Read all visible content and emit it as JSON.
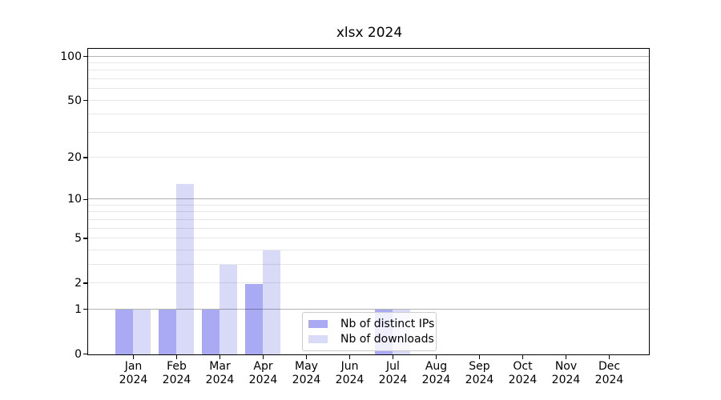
{
  "title": "xlsx 2024",
  "chart_data": {
    "type": "bar",
    "title": "xlsx 2024",
    "categories": [
      "Jan",
      "Feb",
      "Mar",
      "Apr",
      "May",
      "Jun",
      "Jul",
      "Aug",
      "Sep",
      "Oct",
      "Nov",
      "Dec"
    ],
    "year": "2024",
    "series": [
      {
        "name": "Nb of distinct IPs",
        "color": "#a9a9f4",
        "values": [
          1,
          1,
          1,
          2,
          0,
          0,
          1,
          0,
          0,
          0,
          0,
          0
        ]
      },
      {
        "name": "Nb of downloads",
        "color": "#d9d9f8",
        "values": [
          1,
          13,
          3,
          4,
          0,
          0,
          1,
          0,
          0,
          0,
          0,
          0
        ]
      }
    ],
    "yscale": "log1p",
    "ylim": [
      0,
      112
    ],
    "yticks": [
      100,
      50,
      20,
      10,
      5,
      2,
      1,
      0
    ],
    "grid_major_values": [
      1,
      10,
      100
    ],
    "grid_minor_values": [
      2,
      3,
      4,
      5,
      6,
      7,
      8,
      9,
      20,
      30,
      40,
      50,
      60,
      70,
      80,
      90
    ],
    "grid": "on",
    "legend_position": "lower center-left, overlapping Jul bars",
    "xlabel": "",
    "ylabel": ""
  },
  "legend": {
    "items": [
      {
        "label": "Nb of distinct IPs"
      },
      {
        "label": "Nb of downloads"
      }
    ]
  },
  "colors": {
    "distinct_ips_bar": "#a9a9f4",
    "downloads_bar": "#d9d9f8",
    "grid_major": "rgba(0,0,0,0.30)",
    "grid_minor": "rgba(0,0,0,0.09)",
    "spine": "#000000",
    "text": "#000000",
    "legend_border": "#cccccc",
    "legend_background": "rgba(255,255,255,0.8)",
    "background": "#ffffff"
  }
}
